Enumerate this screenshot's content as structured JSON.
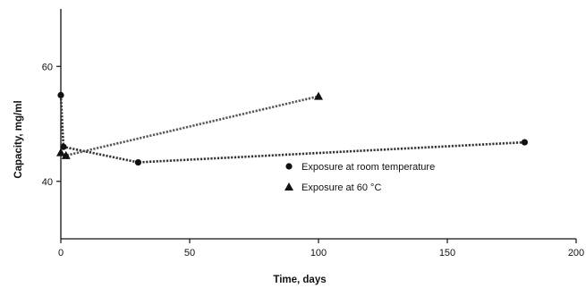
{
  "chart_data": {
    "type": "line",
    "title": "",
    "xlabel": "Time, days",
    "ylabel": "Capacity, mg/ml",
    "xlim": [
      0,
      200
    ],
    "ylim": [
      30,
      70
    ],
    "x_ticks": [
      {
        "value": 0,
        "label": "0"
      },
      {
        "value": 50,
        "label": "50"
      },
      {
        "value": 100,
        "label": "100"
      },
      {
        "value": 150,
        "label": "150"
      },
      {
        "value": 200,
        "label": "200"
      }
    ],
    "y_ticks": [
      {
        "value": 40,
        "label": "40"
      },
      {
        "value": 60,
        "label": "60"
      }
    ],
    "grid": false,
    "legend_position": "center-right",
    "series": [
      {
        "name": "Exposure at room temperature",
        "marker": "circle",
        "color": "#333333",
        "x": [
          0,
          1,
          30,
          180
        ],
        "y": [
          55,
          46,
          43.3,
          46.8
        ]
      },
      {
        "name": "Exposure at 60 °C",
        "marker": "triangle",
        "color": "#555555",
        "x": [
          0,
          2,
          100
        ],
        "y": [
          45,
          44.5,
          54.8
        ]
      }
    ]
  }
}
